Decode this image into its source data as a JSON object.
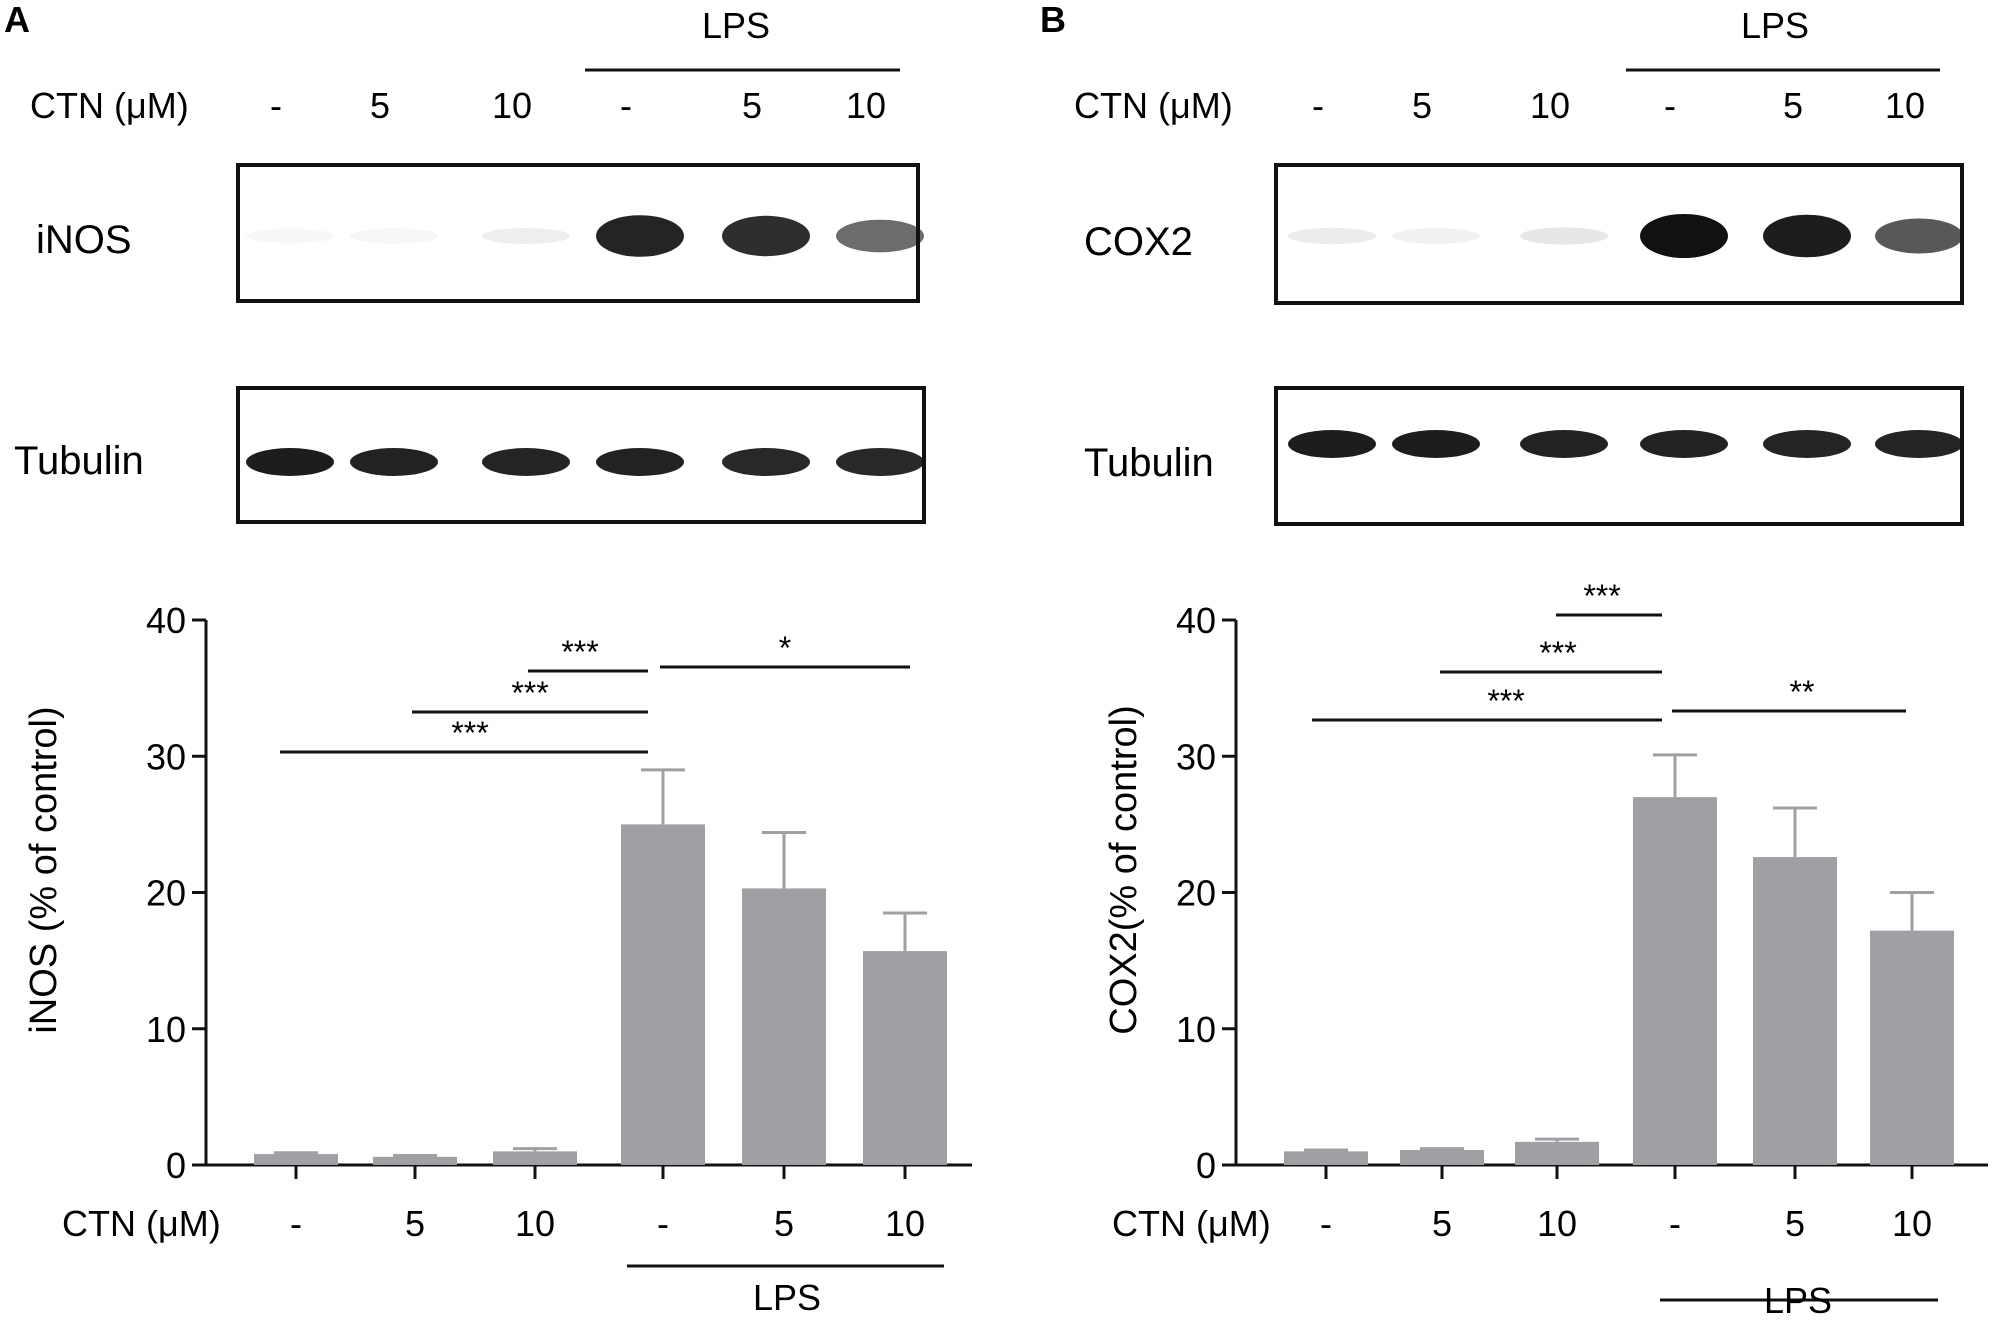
{
  "panels": [
    {
      "letter": "A",
      "protein": "iNOS",
      "loading_control": "Tubulin",
      "treatment_label": "CTN (μM)",
      "lps_label": "LPS",
      "lanes": [
        "-",
        "5",
        "10",
        "-",
        "5",
        "10"
      ],
      "blot_intensity": [
        0.03,
        0.04,
        0.07,
        0.92,
        0.88,
        0.62
      ],
      "tubulin_intensity": [
        0.95,
        0.93,
        0.92,
        0.93,
        0.9,
        0.9
      ],
      "significance": [
        {
          "from": 0,
          "to": 3,
          "label": "***"
        },
        {
          "from": 1,
          "to": 3,
          "label": "***"
        },
        {
          "from": 2,
          "to": 3,
          "label": "***"
        },
        {
          "from": 3,
          "to": 5,
          "label": "*"
        }
      ]
    },
    {
      "letter": "B",
      "protein": "COX2",
      "loading_control": "Tubulin",
      "treatment_label": "CTN (μM)",
      "lps_label": "LPS",
      "lanes": [
        "-",
        "5",
        "10",
        "-",
        "5",
        "10"
      ],
      "blot_intensity": [
        0.08,
        0.06,
        0.1,
        1.0,
        0.95,
        0.7
      ],
      "tubulin_intensity": [
        0.95,
        0.95,
        0.93,
        0.93,
        0.92,
        0.92
      ],
      "significance": [
        {
          "from": 0,
          "to": 3,
          "label": "***"
        },
        {
          "from": 1,
          "to": 3,
          "label": "***"
        },
        {
          "from": 2,
          "to": 3,
          "label": "***"
        },
        {
          "from": 3,
          "to": 5,
          "label": "**"
        }
      ]
    }
  ],
  "chart_data": [
    {
      "type": "bar",
      "categories": [
        "-",
        "5",
        "10",
        "-",
        "5",
        "10"
      ],
      "group_label": "LPS",
      "group_range": [
        3,
        5
      ],
      "values": [
        0.8,
        0.6,
        1.0,
        25.0,
        20.3,
        15.7
      ],
      "error": [
        0.1,
        0.1,
        0.2,
        4.0,
        4.1,
        2.8
      ],
      "ylabel": "iNOS (% of control)",
      "xlabel": "CTN (μM)",
      "ylim": [
        0,
        40
      ],
      "yticks": [
        0,
        10,
        20,
        30,
        40
      ],
      "bar_color": "#a0a0a4"
    },
    {
      "type": "bar",
      "categories": [
        "-",
        "5",
        "10",
        "-",
        "5",
        "10"
      ],
      "group_label": "LPS",
      "group_range": [
        3,
        5
      ],
      "values": [
        1.0,
        1.1,
        1.7,
        27.0,
        22.6,
        17.2
      ],
      "error": [
        0.1,
        0.1,
        0.2,
        3.1,
        3.6,
        2.8
      ],
      "ylabel": "COX2(% of control)",
      "xlabel": "CTN (μM)",
      "ylim": [
        0,
        40
      ],
      "yticks": [
        0,
        10,
        20,
        30,
        40
      ],
      "bar_color": "#a0a0a4"
    }
  ]
}
